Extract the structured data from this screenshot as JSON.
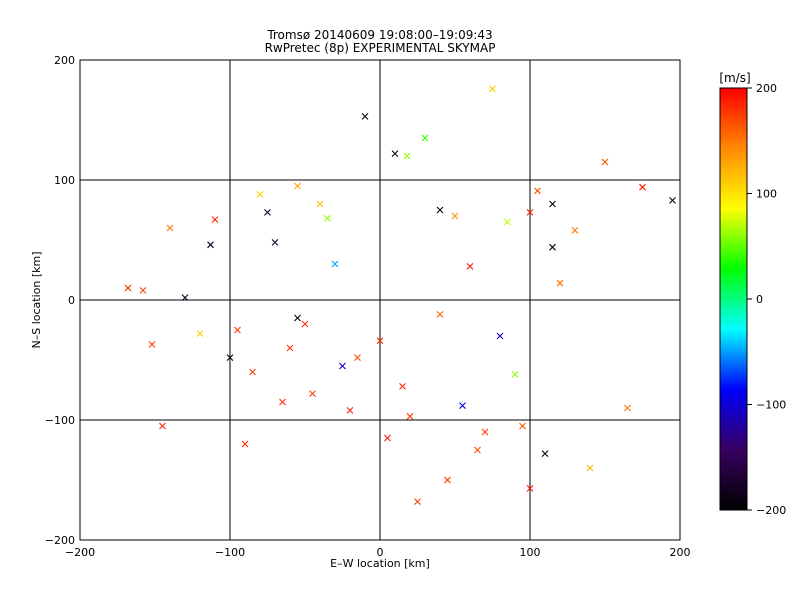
{
  "chart_data": {
    "type": "scatter",
    "title": "Tromsø 20140609 19:08:00–19:09:43",
    "subtitle": "RwPretec (8p) EXPERIMENTAL SKYMAP",
    "xlabel": "E–W location [km]",
    "ylabel": "N–S location [km]",
    "xlim": [
      -200,
      200
    ],
    "ylim": [
      -200,
      200
    ],
    "xticks": [
      -200,
      -100,
      0,
      100,
      200
    ],
    "yticks": [
      -200,
      -100,
      0,
      100,
      200
    ],
    "xtick_labels": [
      "−200",
      "−100",
      "0",
      "100",
      "200"
    ],
    "ytick_labels": [
      "−200",
      "−100",
      "0",
      "100",
      "200"
    ],
    "grid": true,
    "colorbar": {
      "label": "[m/s]",
      "range": [
        -200,
        200
      ],
      "ticks": [
        200,
        100,
        0,
        -100,
        -200
      ],
      "tick_labels": [
        "200",
        "100",
        "0",
        "−100",
        "−200"
      ],
      "colors": [
        "#000000",
        "#3a0060",
        "#0000ff",
        "#00ffff",
        "#00ff00",
        "#ffff00",
        "#ff8800",
        "#ff0000"
      ]
    },
    "series": [
      {
        "marker": "x",
        "x": [
          -168,
          -158,
          -152,
          -145,
          -110,
          -113,
          -120,
          -80,
          -75,
          -70,
          -55,
          -40,
          -35,
          -30,
          -10,
          10,
          18,
          30,
          40,
          50,
          60,
          75,
          85,
          100,
          105,
          115,
          120,
          130,
          150,
          175,
          195,
          -85,
          -65,
          -45,
          -20,
          5,
          25,
          45,
          65,
          90,
          -95,
          -60,
          -25,
          15,
          55,
          95,
          -130,
          -100,
          -50,
          0,
          40,
          80,
          110,
          140,
          -140,
          -90,
          -55,
          -15,
          20,
          70,
          100,
          115,
          165
        ],
        "y": [
          10,
          8,
          -37,
          -105,
          67,
          46,
          -28,
          88,
          73,
          48,
          95,
          80,
          68,
          30,
          153,
          122,
          120,
          135,
          75,
          70,
          28,
          176,
          65,
          73,
          91,
          80,
          14,
          58,
          115,
          94,
          83,
          -60,
          -85,
          -78,
          -92,
          -115,
          -168,
          -150,
          -125,
          -62,
          -25,
          -40,
          -55,
          -72,
          -88,
          -105,
          2,
          -48,
          -20,
          -34,
          -12,
          -30,
          -128,
          -140,
          60,
          -120,
          -15,
          -48,
          -97,
          -110,
          -157,
          44,
          -90
        ],
        "v": [
          180,
          170,
          175,
          185,
          190,
          -180,
          110,
          110,
          -180,
          -175,
          130,
          120,
          60,
          -50,
          -190,
          -185,
          60,
          40,
          -185,
          140,
          190,
          110,
          70,
          185,
          165,
          -185,
          155,
          150,
          165,
          190,
          -190,
          170,
          180,
          175,
          185,
          190,
          175,
          180,
          170,
          60,
          175,
          180,
          -100,
          185,
          -90,
          165,
          -180,
          -190,
          180,
          175,
          160,
          -100,
          -190,
          120,
          150,
          185,
          -190,
          170,
          180,
          175,
          190,
          -180,
          150
        ]
      }
    ]
  }
}
